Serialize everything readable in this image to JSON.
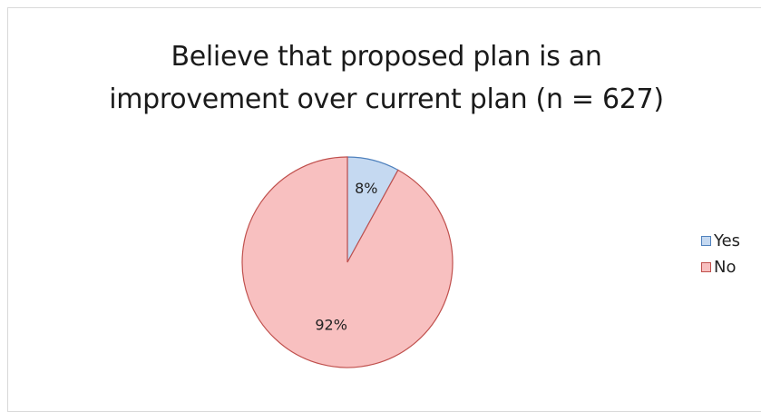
{
  "chart_data": {
    "type": "pie",
    "title": "Believe that proposed plan is an improvement over current plan (n = 627)",
    "title_lines": [
      "Believe that proposed plan is an",
      "improvement over current plan (n = 627)"
    ],
    "categories": [
      "Yes",
      "No"
    ],
    "values": [
      8,
      92
    ],
    "data_labels": [
      "8%",
      "92%"
    ],
    "colors": [
      "#c5d9f1",
      "#f8c0c0"
    ],
    "stroke_colors": [
      "#4f81bd",
      "#c0504d"
    ],
    "legend_position": "right"
  }
}
